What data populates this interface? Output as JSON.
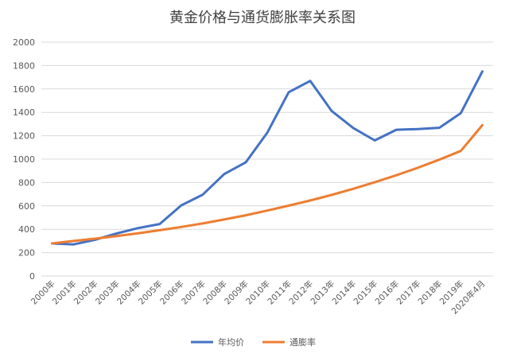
{
  "chart_data": {
    "type": "line",
    "title": "黄金价格与通货膨胀率关系图",
    "categories": [
      "2000年",
      "2001年",
      "2002年",
      "2003年",
      "2004年",
      "2005年",
      "2006年",
      "2007年",
      "2008年",
      "2009年",
      "2010年",
      "2011年",
      "2012年",
      "2013年",
      "2014年",
      "2015年",
      "2016年",
      "2017年",
      "2018年",
      "2019年",
      "2020年4月"
    ],
    "ylim": [
      0,
      2000
    ],
    "yticks": [
      "0",
      "200",
      "400",
      "600",
      "800",
      "1000",
      "1200",
      "1400",
      "1600",
      "1800",
      "2000"
    ],
    "grid": true,
    "legend_position": "bottom",
    "series": [
      {
        "name": "年均价",
        "color": "#4472C4",
        "values": [
          279,
          271,
          310,
          364,
          410,
          445,
          604,
          696,
          872,
          972,
          1225,
          1572,
          1669,
          1411,
          1266,
          1160,
          1251,
          1257,
          1268,
          1393,
          1750
        ]
      },
      {
        "name": "通膨率",
        "color": "#ED7D31",
        "values": [
          279,
          300,
          320,
          342,
          366,
          392,
          420,
          450,
          484,
          520,
          560,
          602,
          646,
          694,
          746,
          802,
          862,
          926,
          995,
          1070,
          1290
        ]
      }
    ]
  }
}
